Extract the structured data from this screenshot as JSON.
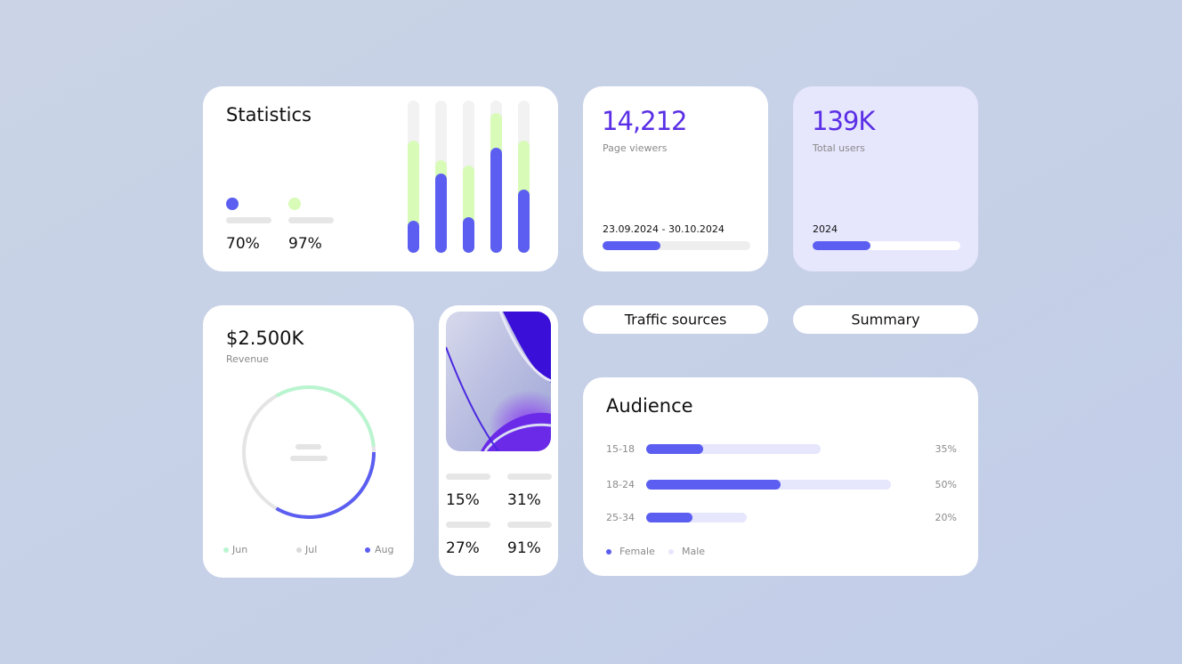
{
  "statistics": {
    "title": "Statistics",
    "metrics": [
      "70%",
      "97%"
    ]
  },
  "page_viewers": {
    "value": "14,212",
    "label": "Page viewers",
    "period": "23.09.2024 - 30.10.2024"
  },
  "total_users": {
    "value": "139K",
    "label": "Total users",
    "period": "2024"
  },
  "revenue": {
    "value": "$2.500K",
    "label": "Revenue",
    "legend": [
      "Jun",
      "Jul",
      "Aug"
    ]
  },
  "image_card": {
    "metrics": [
      "15%",
      "31%",
      "27%",
      "91%"
    ]
  },
  "buttons": [
    "Traffic sources",
    "Summary"
  ],
  "audience": {
    "title": "Audience",
    "rows": [
      {
        "label": "15-18",
        "value": "35%"
      },
      {
        "label": "18-24",
        "value": "50%"
      },
      {
        "label": "25-34",
        "value": "20%"
      }
    ],
    "legend": [
      "Female",
      "Male"
    ]
  }
}
